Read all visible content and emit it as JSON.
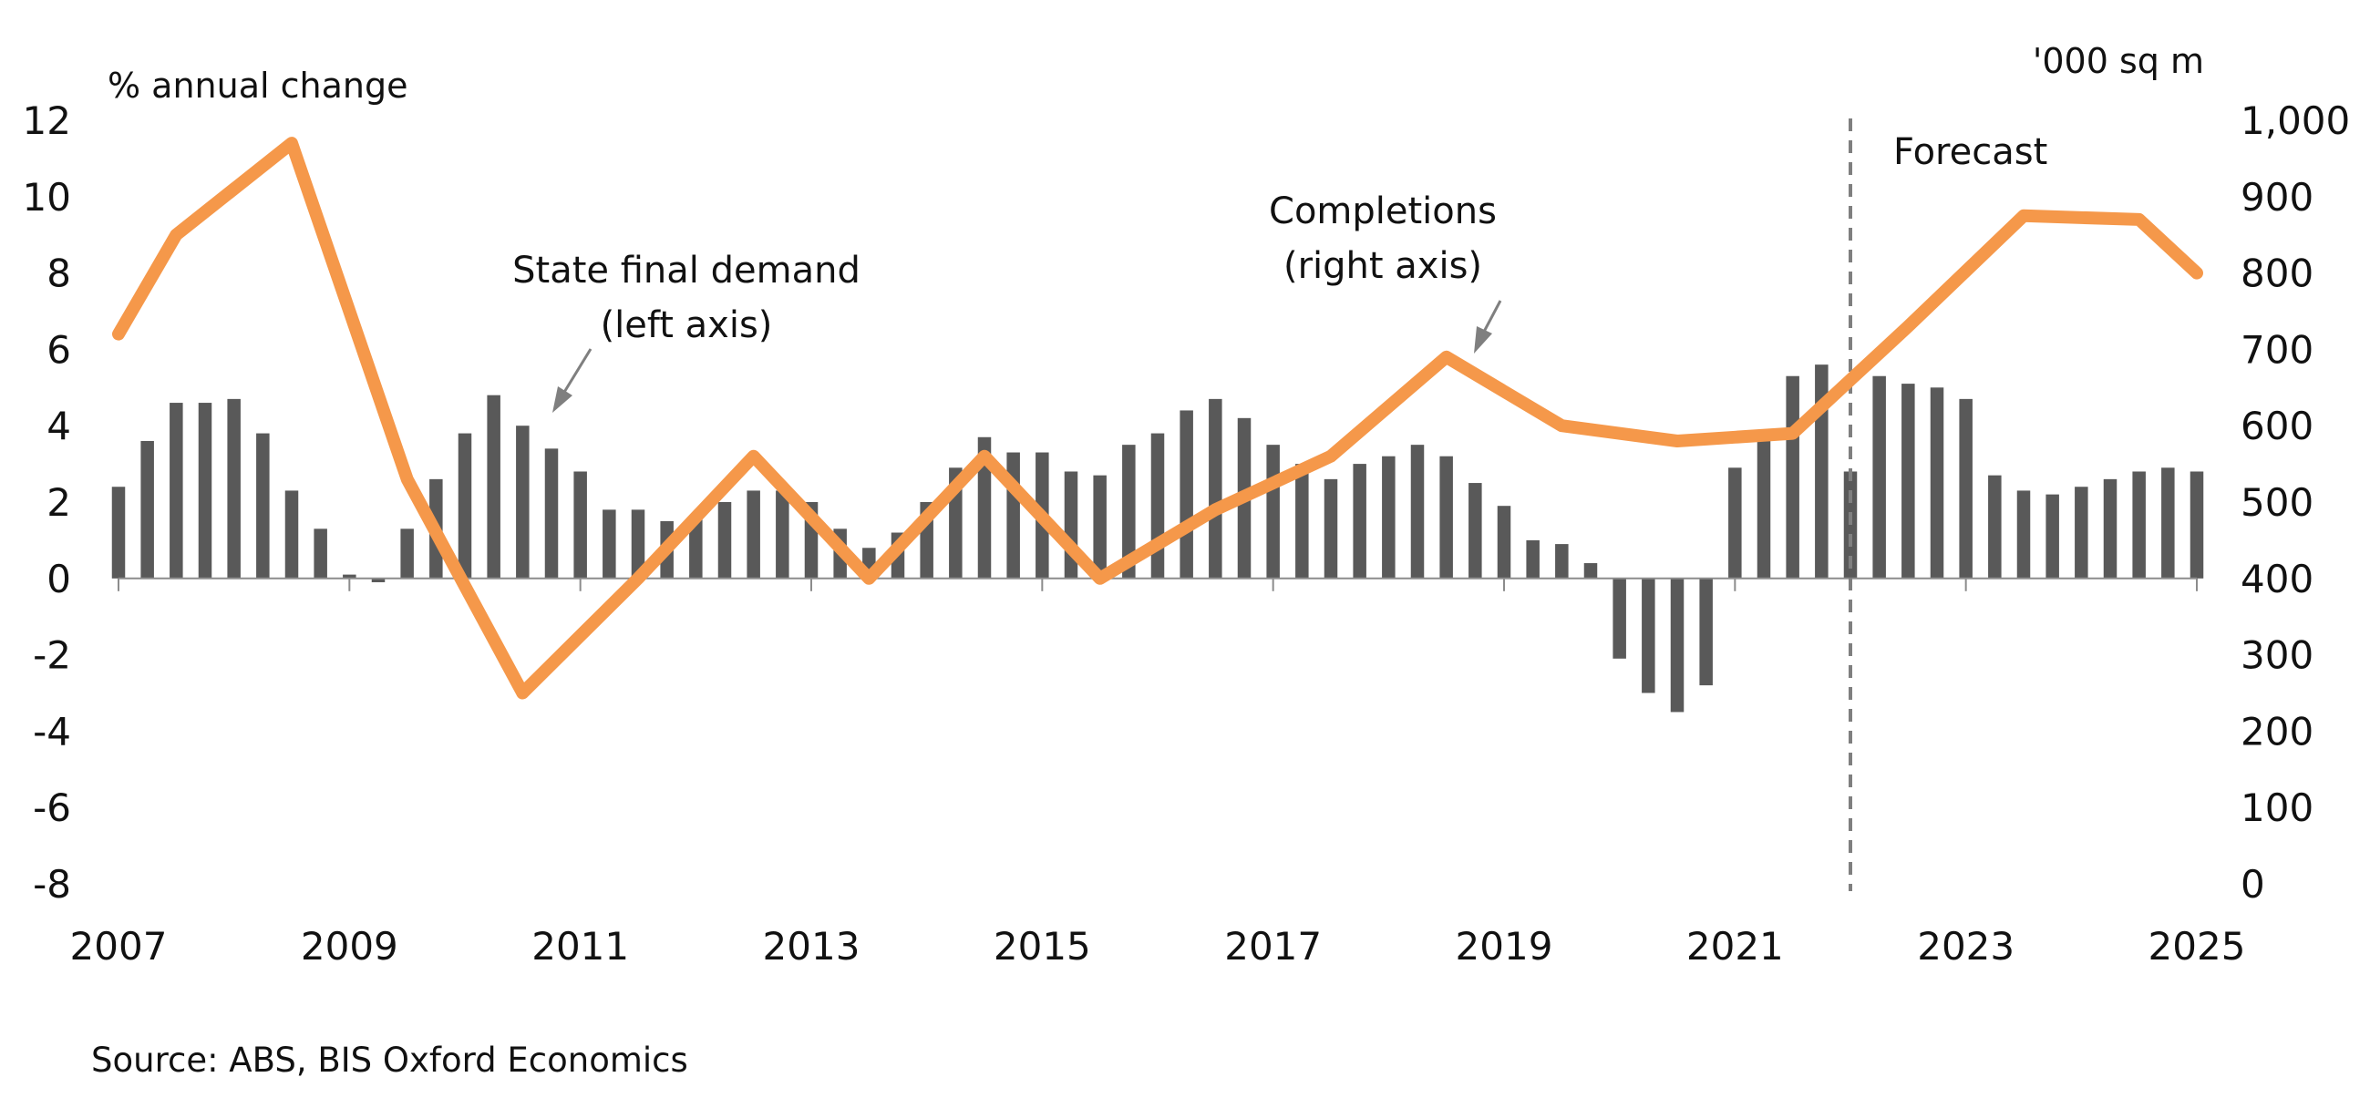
{
  "chart_data": {
    "type": "bar+line",
    "left_axis_label": "% annual change",
    "right_axis_label": "'000 sq m",
    "x_tick_labels": [
      "2007",
      "2009",
      "2011",
      "2013",
      "2015",
      "2017",
      "2019",
      "2021",
      "2023",
      "2025"
    ],
    "left_ticks": [
      "12",
      "10",
      "8",
      "6",
      "4",
      "2",
      "0",
      "-2",
      "-4",
      "-6",
      "-8"
    ],
    "right_ticks": [
      "1,000",
      "900",
      "800",
      "700",
      "600",
      "500",
      "400",
      "300",
      "200",
      "100",
      "0"
    ],
    "ylim_left": [
      -8,
      12
    ],
    "ylim_right": [
      0,
      1000
    ],
    "xlim": [
      2007,
      2025
    ],
    "forecast_start": 2022.0,
    "forecast_label": "Forecast",
    "series": [
      {
        "name": "State final demand (left axis)",
        "type": "bar",
        "axis": "left",
        "color": "#595959",
        "x": [
          2007.0,
          2007.25,
          2007.5,
          2007.75,
          2008.0,
          2008.25,
          2008.5,
          2008.75,
          2009.0,
          2009.25,
          2009.5,
          2009.75,
          2010.0,
          2010.25,
          2010.5,
          2010.75,
          2011.0,
          2011.25,
          2011.5,
          2011.75,
          2012.0,
          2012.25,
          2012.5,
          2012.75,
          2013.0,
          2013.25,
          2013.5,
          2013.75,
          2014.0,
          2014.25,
          2014.5,
          2014.75,
          2015.0,
          2015.25,
          2015.5,
          2015.75,
          2016.0,
          2016.25,
          2016.5,
          2016.75,
          2017.0,
          2017.25,
          2017.5,
          2017.75,
          2018.0,
          2018.25,
          2018.5,
          2018.75,
          2019.0,
          2019.25,
          2019.5,
          2019.75,
          2020.0,
          2020.25,
          2020.5,
          2020.75,
          2021.0,
          2021.25,
          2021.5,
          2021.75,
          2022.0,
          2022.25,
          2022.5,
          2022.75,
          2023.0,
          2023.25,
          2023.5,
          2023.75,
          2024.0,
          2024.25,
          2024.5,
          2024.75,
          2025.0
        ],
        "values": [
          2.4,
          3.6,
          4.6,
          4.6,
          4.7,
          3.8,
          2.3,
          1.3,
          0.1,
          -0.1,
          1.3,
          2.6,
          3.8,
          4.8,
          4.0,
          3.4,
          2.8,
          1.8,
          1.8,
          1.5,
          1.6,
          2.0,
          2.3,
          2.3,
          2.0,
          1.3,
          0.8,
          1.2,
          2.0,
          2.9,
          3.7,
          3.3,
          3.3,
          2.8,
          2.7,
          3.5,
          3.8,
          4.4,
          4.7,
          4.2,
          3.5,
          3.0,
          2.6,
          3.0,
          3.2,
          3.5,
          3.2,
          2.5,
          1.9,
          1.0,
          0.9,
          0.4,
          -2.1,
          -3.0,
          -3.5,
          -2.8,
          2.9,
          3.8,
          5.3,
          5.6,
          2.8,
          5.3,
          5.1,
          5.0,
          4.7,
          2.7,
          2.3,
          2.2,
          2.4,
          2.6,
          2.8,
          2.9,
          2.8
        ]
      },
      {
        "name": "Completions (right axis)",
        "type": "line",
        "axis": "right",
        "color": "#F5984A",
        "x": [
          2007.0,
          2007.5,
          2008.5,
          2009.5,
          2010.5,
          2011.5,
          2012.5,
          2013.5,
          2014.5,
          2015.5,
          2016.5,
          2017.5,
          2018.5,
          2019.5,
          2020.5,
          2021.0,
          2021.5,
          2022.0,
          2022.5,
          2023.5,
          2024.5,
          2025.0
        ],
        "values": [
          720,
          850,
          970,
          530,
          250,
          400,
          560,
          400,
          560,
          400,
          490,
          560,
          690,
          600,
          580,
          585,
          590,
          660,
          730,
          875,
          870,
          800
        ]
      }
    ],
    "annotations": [
      {
        "lines": [
          "State final demand",
          "(left axis)"
        ]
      },
      {
        "lines": [
          "Completions",
          "(right axis)"
        ]
      }
    ],
    "source": "Source: ABS, BIS Oxford Economics"
  }
}
